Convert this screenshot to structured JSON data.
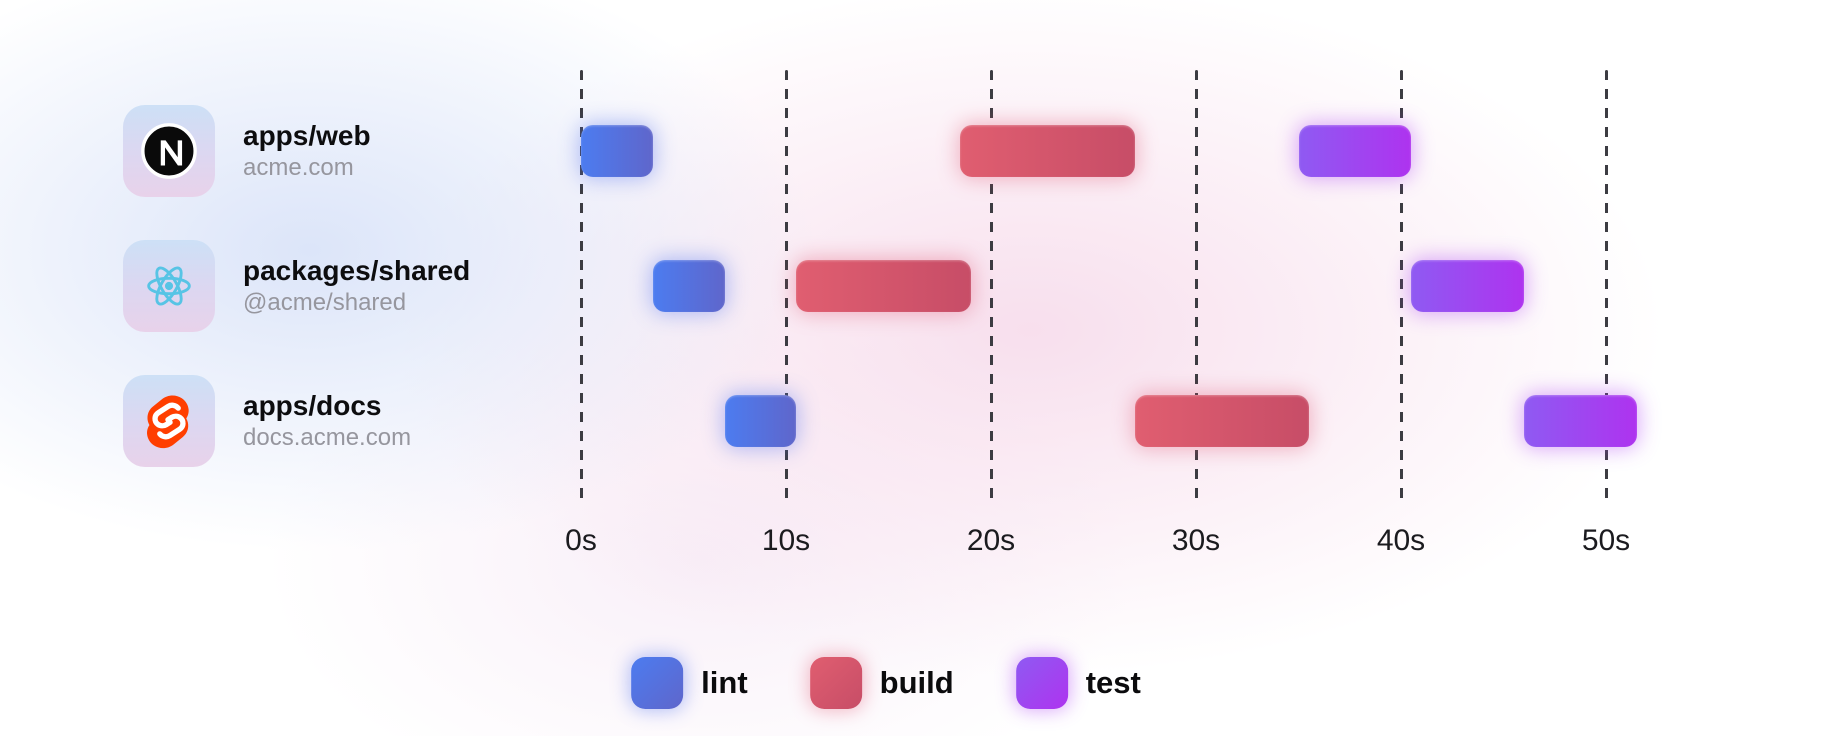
{
  "chart_data": {
    "type": "bar",
    "variant": "gantt-timeline",
    "time_unit": "seconds",
    "x_ticks": [
      0,
      10,
      20,
      30,
      40,
      50
    ],
    "x_tick_labels": [
      "0s",
      "10s",
      "20s",
      "30s",
      "40s",
      "50s"
    ],
    "xlim": [
      0,
      53
    ],
    "grid": "dashed-vertical",
    "legend_position": "bottom-center",
    "rows": [
      {
        "label": "apps/web",
        "sublabel": "acme.com",
        "icon": "nextjs-icon",
        "tasks": [
          {
            "name": "lint",
            "start_s": 0,
            "end_s": 3.5
          },
          {
            "name": "build",
            "start_s": 18.5,
            "end_s": 27
          },
          {
            "name": "test",
            "start_s": 35,
            "end_s": 40.5
          }
        ]
      },
      {
        "label": "packages/shared",
        "sublabel": "@acme/shared",
        "icon": "react-icon",
        "tasks": [
          {
            "name": "lint",
            "start_s": 3.5,
            "end_s": 7
          },
          {
            "name": "build",
            "start_s": 10.5,
            "end_s": 19
          },
          {
            "name": "test",
            "start_s": 40.5,
            "end_s": 46
          }
        ]
      },
      {
        "label": "apps/docs",
        "sublabel": "docs.acme.com",
        "icon": "svelte-icon",
        "tasks": [
          {
            "name": "lint",
            "start_s": 7,
            "end_s": 10.5
          },
          {
            "name": "build",
            "start_s": 27,
            "end_s": 35.5
          },
          {
            "name": "test",
            "start_s": 46,
            "end_s": 51.5
          }
        ]
      }
    ],
    "legend": [
      {
        "label": "lint",
        "key": "lint"
      },
      {
        "label": "build",
        "key": "build"
      },
      {
        "label": "test",
        "key": "test"
      }
    ],
    "task_colors": {
      "lint": {
        "from": "#4c7cf0",
        "to": "#5f66cb",
        "glow": "rgba(90,120,240,0.45)"
      },
      "build": {
        "from": "#e05e70",
        "to": "#c74d67",
        "glow": "rgba(225,85,115,0.40)"
      },
      "test": {
        "from": "#8f5af2",
        "to": "#ae33ef",
        "glow": "rgba(175,70,245,0.45)"
      }
    },
    "icon_colors": {
      "nextjs": "#0a0a0a",
      "react": "#57c4e5",
      "svelte": "#ff3e00"
    }
  }
}
